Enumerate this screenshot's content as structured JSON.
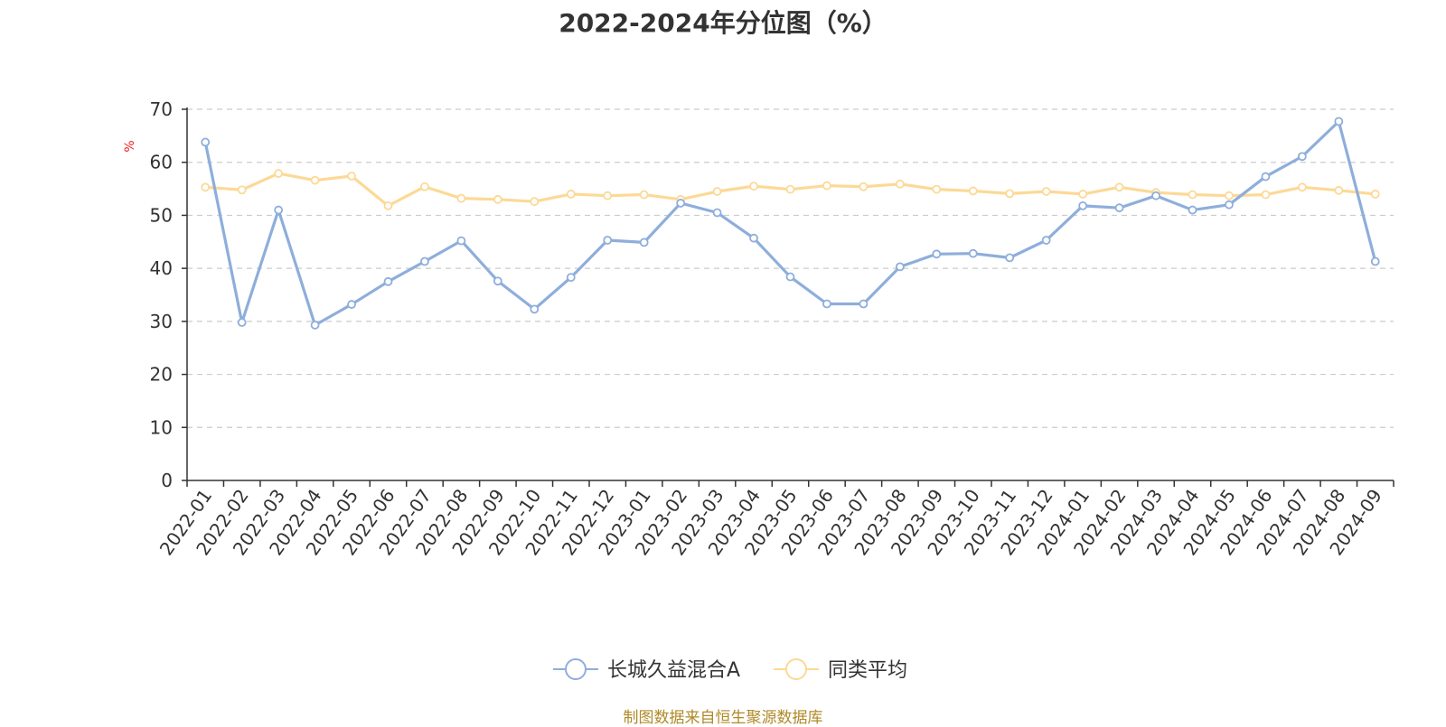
{
  "colors": {
    "series_a": "#8eaedb",
    "series_b": "#fcd996",
    "axis": "#333333",
    "grid": "#cccccc",
    "unit": "#ee2222",
    "source": "#b08a28"
  },
  "chart_data": {
    "type": "line",
    "title": "2022-2024年分位图（%）",
    "ylabel": "%",
    "ylim": [
      0,
      70
    ],
    "yticks": [
      "0",
      "10",
      "20",
      "30",
      "40",
      "50",
      "60",
      "70"
    ],
    "grid": true,
    "legend_position": "bottom-center",
    "categories": [
      "2022-01",
      "2022-02",
      "2022-03",
      "2022-04",
      "2022-05",
      "2022-06",
      "2022-07",
      "2022-08",
      "2022-09",
      "2022-10",
      "2022-11",
      "2022-12",
      "2023-01",
      "2023-02",
      "2023-03",
      "2023-04",
      "2023-05",
      "2023-06",
      "2023-07",
      "2023-08",
      "2023-09",
      "2023-10",
      "2023-11",
      "2023-12",
      "2024-01",
      "2024-02",
      "2024-03",
      "2024-04",
      "2024-05",
      "2024-06",
      "2024-07",
      "2024-08",
      "2024-09"
    ],
    "series": [
      {
        "name": "长城久益混合A",
        "values": [
          63.8,
          29.8,
          51.0,
          29.3,
          33.2,
          37.5,
          41.3,
          45.2,
          37.6,
          32.3,
          38.3,
          45.3,
          44.9,
          52.3,
          50.5,
          45.7,
          38.4,
          33.3,
          33.3,
          40.3,
          42.7,
          42.8,
          42.0,
          45.3,
          51.8,
          51.4,
          53.7,
          51.0,
          52.0,
          57.3,
          61.1,
          67.7,
          41.3
        ]
      },
      {
        "name": "同类平均",
        "values": [
          55.3,
          54.8,
          57.9,
          56.6,
          57.4,
          51.8,
          55.4,
          53.2,
          53.0,
          52.6,
          54.0,
          53.7,
          53.9,
          53.0,
          54.5,
          55.5,
          54.9,
          55.6,
          55.4,
          55.9,
          54.9,
          54.6,
          54.1,
          54.5,
          54.0,
          55.3,
          54.3,
          53.9,
          53.7,
          53.9,
          55.3,
          54.7,
          54.0
        ]
      }
    ]
  },
  "source_text": "制图数据来自恒生聚源数据库"
}
